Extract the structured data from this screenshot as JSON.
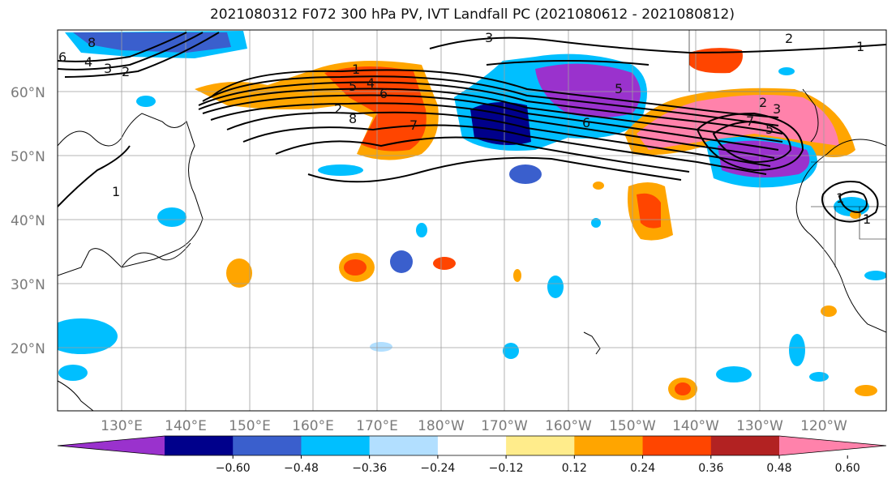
{
  "title": "2021080312 F072 300 hPa PV, IVT Landfall PC (2021080612 - 2021080812)",
  "lat_ticks": [
    "60°N",
    "50°N",
    "40°N",
    "30°N",
    "20°N"
  ],
  "lon_ticks": [
    "130°E",
    "140°E",
    "150°E",
    "160°E",
    "170°E",
    "180°W",
    "170°W",
    "160°W",
    "150°W",
    "140°W",
    "130°W",
    "120°W"
  ],
  "colorbar": {
    "colors": [
      "#9a32cd",
      "#00008b",
      "#3a5fcd",
      "#00bfff",
      "#b2dfff",
      "#ffffff",
      "#ffec8b",
      "#ffa500",
      "#ff4500",
      "#b22222",
      "#ff82ab"
    ],
    "tick_labels": [
      "−0.60",
      "−0.48",
      "−0.36",
      "−0.24",
      "−0.12",
      "0.12",
      "0.24",
      "0.36",
      "0.48",
      "0.60"
    ]
  },
  "contour_labels": [
    "8",
    "6",
    "4",
    "3",
    "2",
    "1",
    "4",
    "5",
    "6",
    "7",
    "8",
    "3",
    "5",
    "6",
    "2",
    "3",
    "5",
    "7",
    "2",
    "2",
    "1",
    "1",
    "1",
    "1"
  ]
}
